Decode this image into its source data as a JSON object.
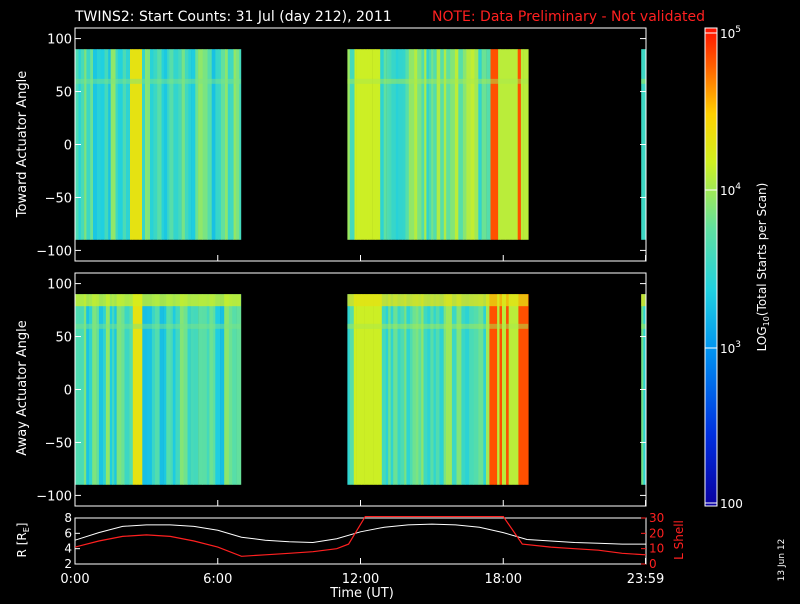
{
  "title": {
    "text": "TWINS2: Start Counts: 31 Jul (day 212), 2011",
    "note": "NOTE: Data Preliminary - Not validated",
    "note_color": "#ff2020"
  },
  "date_stamp": "13 Jun 12",
  "colors": {
    "background": "#000000",
    "axis": "#ffffff",
    "orbit_r": "#ffffff",
    "orbit_l": "#ff2020",
    "colorscale": [
      "#0a00a0",
      "#0030e0",
      "#0090f0",
      "#20d0e0",
      "#60e0a0",
      "#d0f020",
      "#ffd000",
      "#ff6000",
      "#ff1000"
    ]
  },
  "chart_data": [
    {
      "type": "heatmap",
      "panel": "toward",
      "ylabel": "Toward Actuator Angle",
      "ylim": [
        -110,
        110
      ],
      "yticks": [
        100,
        50,
        0,
        -50,
        -100
      ],
      "xlim": [
        0,
        24
      ],
      "segments": [
        {
          "start": 0.0,
          "end": 6.97,
          "level": 0.45
        },
        {
          "start": 11.45,
          "end": 19.05,
          "level": 0.5
        },
        {
          "start": 23.8,
          "end": 24.0,
          "level": 0.5
        }
      ],
      "angle_range": [
        -90,
        90
      ]
    },
    {
      "type": "heatmap",
      "panel": "away",
      "ylabel": "Away Actuator Angle",
      "ylim": [
        -110,
        110
      ],
      "yticks": [
        100,
        50,
        0,
        -50,
        -100
      ],
      "xlim": [
        0,
        24
      ],
      "segments": [
        {
          "start": 0.0,
          "end": 6.97,
          "level": 0.45
        },
        {
          "start": 11.45,
          "end": 19.05,
          "level": 0.5
        },
        {
          "start": 23.8,
          "end": 24.0,
          "level": 0.5
        }
      ],
      "angle_range": [
        -90,
        90
      ]
    },
    {
      "type": "line",
      "panel": "orbit",
      "xlabel": "Time (UT)",
      "xticks": [
        "0:00",
        "6:00",
        "12:00",
        "18:00",
        "23:59"
      ],
      "xtick_hours": [
        0,
        6,
        12,
        18,
        23.98
      ],
      "ylabel": "R [R",
      "ylabel_sub": "E",
      "ylabel_end": "]",
      "y2label": "L Shell",
      "ylim": [
        2,
        8
      ],
      "y2lim": [
        0,
        30
      ],
      "yticks": [
        "8",
        "6",
        "4",
        "2"
      ],
      "y2ticks": [
        "30",
        "20",
        "10",
        "0"
      ],
      "series": [
        {
          "x": [
            0,
            1,
            2,
            3,
            4,
            5,
            6,
            7,
            8,
            9,
            10,
            11,
            12,
            13,
            14,
            15,
            16,
            17,
            18,
            19,
            20,
            21,
            22,
            23,
            24
          ],
          "y": [
            5.1,
            6.1,
            6.9,
            7.1,
            7.1,
            6.9,
            6.4,
            5.5,
            5.1,
            4.9,
            4.8,
            5.3,
            6.2,
            6.8,
            7.1,
            7.2,
            7.1,
            6.8,
            6.1,
            5.2,
            5.0,
            4.8,
            4.7,
            4.6,
            4.6
          ]
        },
        {
          "x": [
            0,
            1,
            2,
            3,
            4,
            5,
            6,
            7,
            8,
            9,
            10,
            11,
            11.5,
            12.2,
            18.0,
            18.8,
            20,
            21,
            22,
            23,
            24
          ],
          "y": [
            11,
            15,
            18,
            19,
            18,
            15,
            11,
            5,
            6,
            7,
            8,
            10,
            13,
            31,
            31,
            13,
            11,
            10,
            9,
            7,
            6
          ]
        }
      ]
    }
  ],
  "colorbar": {
    "type": "colorbar",
    "label_main": "LOG",
    "label_sub": "10",
    "label_rest": "(Total Starts per Scan)",
    "ticks": [
      {
        "base": "10",
        "exp": "5"
      },
      {
        "base": "10",
        "exp": "4"
      },
      {
        "base": "10",
        "exp": "3"
      },
      {
        "base": "100",
        "exp": ""
      }
    ]
  }
}
